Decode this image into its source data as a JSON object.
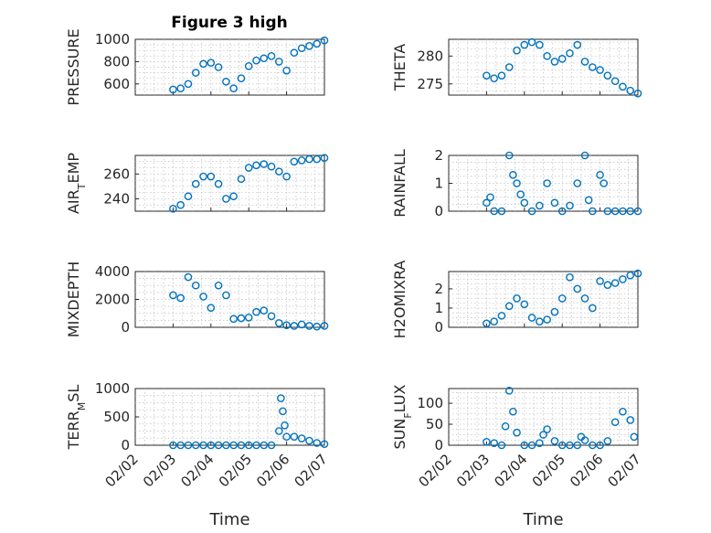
{
  "title": "Figure 3 high",
  "x_axis": {
    "label": "Time",
    "ticks": [
      "02/02",
      "02/03",
      "02/04",
      "02/05",
      "02/06",
      "02/07"
    ]
  },
  "marker_color": "#0072bd",
  "chart_data": [
    {
      "type": "scatter",
      "ylabel": "PRESSURE",
      "ylabel_sub": "",
      "ylim": [
        500,
        1000
      ],
      "yticks": [
        "600",
        "800",
        "1000"
      ],
      "yticks_values": [
        600,
        800,
        1000
      ],
      "x": [
        1.0,
        1.2,
        1.4,
        1.6,
        1.8,
        2.0,
        2.2,
        2.4,
        2.6,
        2.8,
        3.0,
        3.2,
        3.4,
        3.6,
        3.8,
        4.0,
        4.2,
        4.4,
        4.6,
        4.8,
        5.0
      ],
      "y": [
        550,
        560,
        600,
        700,
        780,
        790,
        750,
        620,
        560,
        650,
        760,
        810,
        830,
        850,
        800,
        720,
        880,
        920,
        940,
        960,
        990
      ]
    },
    {
      "type": "scatter",
      "ylabel": "THETA",
      "ylabel_sub": "",
      "ylim": [
        273,
        283
      ],
      "yticks": [
        "275",
        "280"
      ],
      "yticks_values": [
        275,
        280
      ],
      "x": [
        1.0,
        1.2,
        1.4,
        1.6,
        1.8,
        2.0,
        2.2,
        2.4,
        2.6,
        2.8,
        3.0,
        3.2,
        3.4,
        3.6,
        3.8,
        4.0,
        4.2,
        4.4,
        4.6,
        4.8,
        5.0
      ],
      "y": [
        276.5,
        276.0,
        276.5,
        278.0,
        281.0,
        282.0,
        282.5,
        282.0,
        280.0,
        279.0,
        279.5,
        280.5,
        282.0,
        279.0,
        278.0,
        277.5,
        276.5,
        275.5,
        274.5,
        273.8,
        273.3
      ]
    },
    {
      "type": "scatter",
      "ylabel": "AIR",
      "ylabel_sub": "T",
      "ylabel_tail": "EMP",
      "ylim": [
        230,
        275
      ],
      "yticks": [
        "240",
        "260"
      ],
      "yticks_values": [
        240,
        260
      ],
      "x": [
        1.0,
        1.2,
        1.4,
        1.6,
        1.8,
        2.0,
        2.2,
        2.4,
        2.6,
        2.8,
        3.0,
        3.2,
        3.4,
        3.6,
        3.8,
        4.0,
        4.2,
        4.4,
        4.6,
        4.8,
        5.0
      ],
      "y": [
        232,
        235,
        242,
        252,
        258,
        258,
        252,
        240,
        242,
        256,
        265,
        267,
        268,
        266,
        262,
        258,
        270,
        271,
        272,
        272,
        273
      ]
    },
    {
      "type": "scatter",
      "ylabel": "RAINFALL",
      "ylabel_sub": "",
      "ylim": [
        0,
        2
      ],
      "yticks": [
        "0",
        "1",
        "2"
      ],
      "yticks_values": [
        0,
        1,
        2
      ],
      "x": [
        1.0,
        1.1,
        1.2,
        1.4,
        1.6,
        1.7,
        1.8,
        1.9,
        2.0,
        2.2,
        2.4,
        2.6,
        2.8,
        3.0,
        3.2,
        3.4,
        3.6,
        3.7,
        3.8,
        4.0,
        4.1,
        4.2,
        4.4,
        4.6,
        4.8,
        5.0
      ],
      "y": [
        0.3,
        0.5,
        0.0,
        0.0,
        2.0,
        1.3,
        1.0,
        0.6,
        0.3,
        0.0,
        0.2,
        1.0,
        0.3,
        0.0,
        0.2,
        1.0,
        2.0,
        0.4,
        0.0,
        1.3,
        1.0,
        0.0,
        0.0,
        0.0,
        0.0,
        0.0
      ]
    },
    {
      "type": "scatter",
      "ylabel": "MIXDEPTH",
      "ylabel_sub": "",
      "ylim": [
        0,
        4000
      ],
      "yticks": [
        "0",
        "2000",
        "4000"
      ],
      "yticks_values": [
        0,
        2000,
        4000
      ],
      "x": [
        1.0,
        1.2,
        1.4,
        1.6,
        1.8,
        2.0,
        2.2,
        2.4,
        2.6,
        2.8,
        3.0,
        3.2,
        3.4,
        3.6,
        3.8,
        4.0,
        4.2,
        4.4,
        4.6,
        4.8,
        5.0
      ],
      "y": [
        2300,
        2100,
        3600,
        3000,
        2200,
        1400,
        3000,
        2300,
        600,
        650,
        700,
        1100,
        1200,
        800,
        300,
        150,
        100,
        200,
        100,
        50,
        100
      ]
    },
    {
      "type": "scatter",
      "ylabel": "H2OMIXRA",
      "ylabel_sub": "",
      "ylim": [
        0,
        2.9
      ],
      "yticks": [
        "0",
        "1",
        "2"
      ],
      "yticks_values": [
        0,
        1,
        2
      ],
      "x": [
        1.0,
        1.2,
        1.4,
        1.6,
        1.8,
        2.0,
        2.2,
        2.4,
        2.6,
        2.8,
        3.0,
        3.2,
        3.4,
        3.6,
        3.8,
        4.0,
        4.2,
        4.4,
        4.6,
        4.8,
        5.0
      ],
      "y": [
        0.2,
        0.3,
        0.6,
        1.1,
        1.5,
        1.2,
        0.5,
        0.3,
        0.4,
        0.8,
        1.5,
        2.6,
        2.0,
        1.5,
        1.0,
        2.4,
        2.2,
        2.3,
        2.5,
        2.7,
        2.8
      ]
    },
    {
      "type": "scatter",
      "ylabel": "TERR",
      "ylabel_sub": "M",
      "ylabel_tail": "SL",
      "ylim": [
        0,
        1000
      ],
      "yticks": [
        "0",
        "500",
        "1000"
      ],
      "yticks_values": [
        0,
        500,
        1000
      ],
      "x": [
        1.0,
        1.2,
        1.4,
        1.6,
        1.8,
        2.0,
        2.2,
        2.4,
        2.6,
        2.8,
        3.0,
        3.2,
        3.4,
        3.6,
        3.8,
        3.85,
        3.9,
        3.95,
        4.0,
        4.2,
        4.4,
        4.6,
        4.8,
        5.0
      ],
      "y": [
        0,
        0,
        0,
        0,
        0,
        0,
        0,
        0,
        0,
        0,
        0,
        0,
        0,
        0,
        250,
        830,
        600,
        350,
        150,
        150,
        120,
        80,
        40,
        20
      ]
    },
    {
      "type": "scatter",
      "ylabel": "SUN",
      "ylabel_sub": "F",
      "ylabel_tail": "LUX",
      "ylim": [
        0,
        135
      ],
      "yticks": [
        "0",
        "50",
        "100"
      ],
      "yticks_values": [
        0,
        50,
        100
      ],
      "x": [
        1.0,
        1.2,
        1.4,
        1.5,
        1.6,
        1.7,
        1.8,
        2.0,
        2.2,
        2.4,
        2.5,
        2.6,
        2.8,
        3.0,
        3.2,
        3.4,
        3.5,
        3.6,
        3.8,
        4.0,
        4.2,
        4.4,
        4.6,
        4.8,
        4.9
      ],
      "y": [
        8,
        5,
        0,
        45,
        130,
        80,
        30,
        0,
        0,
        5,
        25,
        38,
        10,
        0,
        0,
        0,
        20,
        12,
        0,
        0,
        10,
        55,
        80,
        60,
        20
      ]
    }
  ]
}
